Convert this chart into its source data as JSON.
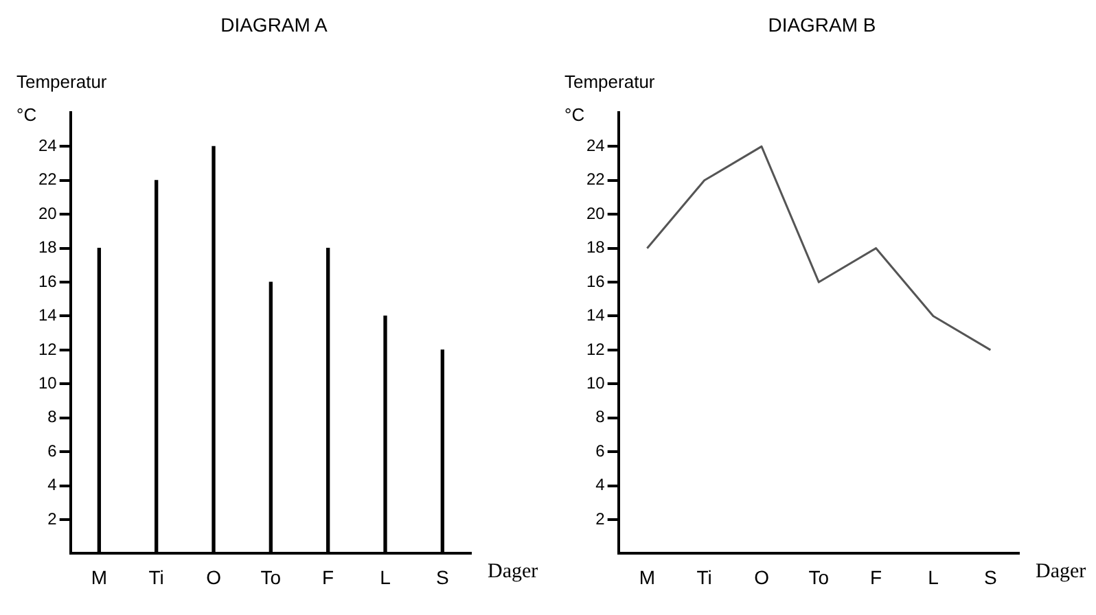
{
  "chart_data": [
    {
      "type": "bar",
      "title": "DIAGRAM A",
      "xlabel": "Dager",
      "ylabel": "Temperatur °C",
      "categories": [
        "M",
        "Ti",
        "O",
        "To",
        "F",
        "L",
        "S"
      ],
      "values": [
        18,
        22,
        24,
        16,
        18,
        14,
        12
      ],
      "color": "#000000",
      "ylim": [
        0,
        26
      ],
      "yticks": [
        2,
        4,
        6,
        8,
        10,
        12,
        14,
        16,
        18,
        20,
        22,
        24
      ],
      "grid": false,
      "legend": false
    },
    {
      "type": "line",
      "title": "DIAGRAM B",
      "xlabel": "Dager",
      "ylabel": "Temperatur °C",
      "categories": [
        "M",
        "Ti",
        "O",
        "To",
        "F",
        "L",
        "S"
      ],
      "values": [
        18,
        22,
        24,
        16,
        18,
        14,
        12
      ],
      "color": "#555555",
      "ylim": [
        0,
        26
      ],
      "yticks": [
        2,
        4,
        6,
        8,
        10,
        12,
        14,
        16,
        18,
        20,
        22,
        24
      ],
      "grid": false,
      "legend": false,
      "marker": "none",
      "line_style": "solid"
    }
  ]
}
